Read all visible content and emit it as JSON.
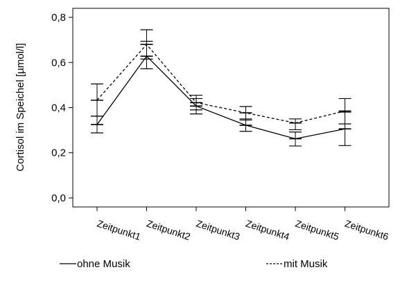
{
  "chart_data": {
    "type": "line",
    "ylabel": "Cortisol im Speichel [µmol/l]",
    "categories": [
      "Zeitpunkt1",
      "Zeitpunkt2",
      "Zeitpunkt3",
      "Zeitpunkt4",
      "Zeitpunkt5",
      "Zeitpunkt6"
    ],
    "ylim": [
      -0.04,
      0.84
    ],
    "yticks": [
      0.0,
      0.2,
      0.4,
      0.6,
      0.8
    ],
    "ytick_labels": [
      "0,0",
      "0,2",
      "0,4",
      "0,6",
      "0,8"
    ],
    "grid": false,
    "legend": "bottom",
    "series": [
      {
        "name": "ohne Musik",
        "style": "solid",
        "values": [
          0.325,
          0.628,
          0.407,
          0.322,
          0.262,
          0.306
        ],
        "error_low": [
          0.288,
          0.572,
          0.372,
          0.295,
          0.23,
          0.232
        ],
        "error_high": [
          0.362,
          0.694,
          0.44,
          0.35,
          0.292,
          0.38
        ]
      },
      {
        "name": "mit Musik",
        "style": "dashed",
        "values": [
          0.433,
          0.68,
          0.422,
          0.377,
          0.332,
          0.385
        ],
        "error_low": [
          0.362,
          0.615,
          0.39,
          0.345,
          0.302,
          0.328
        ],
        "error_high": [
          0.505,
          0.745,
          0.455,
          0.405,
          0.35,
          0.44
        ]
      }
    ]
  }
}
